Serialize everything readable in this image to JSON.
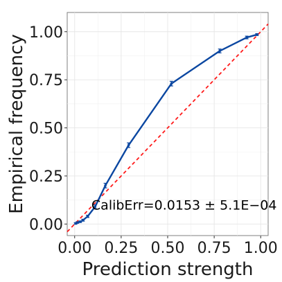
{
  "chart_data": {
    "type": "line",
    "xlabel": "Prediction strength",
    "ylabel": "Empirical frequency",
    "xlim": [
      -0.04,
      1.04
    ],
    "ylim": [
      -0.06,
      1.1
    ],
    "xticks": [
      0.0,
      0.25,
      0.5,
      0.75,
      1.0
    ],
    "xtick_labels": [
      "0.00",
      "0.25",
      "0.50",
      "0.75",
      "1.00"
    ],
    "yticks": [
      0.0,
      0.25,
      0.5,
      0.75,
      1.0
    ],
    "ytick_labels": [
      "0.00",
      "0.25",
      "0.50",
      "0.75",
      "1.00"
    ],
    "grid": true,
    "series": [
      {
        "color": "#0b47a1",
        "x": [
          0.005,
          0.015,
          0.03,
          0.045,
          0.07,
          0.11,
          0.165,
          0.29,
          0.52,
          0.78,
          0.925,
          0.98
        ],
        "y": [
          0.003,
          0.008,
          0.012,
          0.02,
          0.04,
          0.09,
          0.2,
          0.41,
          0.73,
          0.9,
          0.97,
          0.985
        ],
        "err": [
          0.004,
          0.004,
          0.004,
          0.005,
          0.006,
          0.01,
          0.012,
          0.012,
          0.012,
          0.01,
          0.007,
          0.005
        ]
      }
    ],
    "reference_line": {
      "from": [
        -0.04,
        -0.04
      ],
      "to": [
        1.04,
        1.04
      ],
      "color": "#ff1a1a",
      "style": "dashed"
    },
    "annotation": {
      "text": "CalibErr=0.0153 ± 5.1E−04",
      "x": 0.09,
      "y": 0.075
    }
  }
}
